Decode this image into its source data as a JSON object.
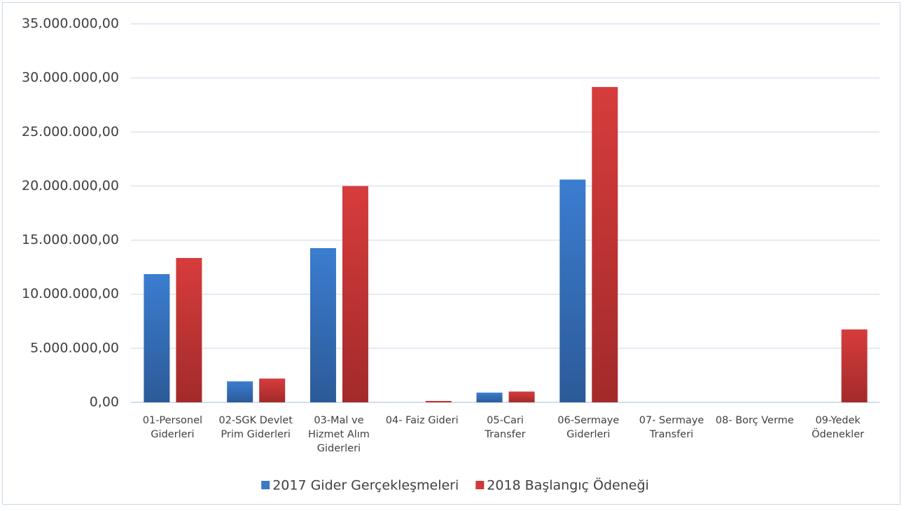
{
  "chart_data": {
    "type": "bar",
    "categories": [
      "01-Personel Giderleri",
      "02-SGK Devlet Prim Giderleri",
      "03-Mal ve Hizmet Alım Giderleri",
      "04- Faiz Gideri",
      "05-Cari Transfer",
      "06-Sermaye Giderleri",
      "07- Sermaye Transferi",
      "08- Borç Verme",
      "09-Yedek Ödenekler"
    ],
    "series": [
      {
        "name": "2017 Gider Gerçekleşmeleri",
        "color": "#3a78c8",
        "values": [
          11860000,
          1940000,
          14260000,
          0,
          900000,
          20600000,
          0,
          0,
          0
        ]
      },
      {
        "name": "2018 Başlangıç Ödeneği",
        "color": "#d03a3a",
        "values": [
          13350000,
          2200000,
          20000000,
          130000,
          1000000,
          29160000,
          0,
          0,
          6740000
        ]
      }
    ],
    "ylim": [
      0,
      35000000
    ],
    "yticks": [
      {
        "value": 0,
        "label": "0,00"
      },
      {
        "value": 5000000,
        "label": "5.000.000,00"
      },
      {
        "value": 10000000,
        "label": "10.000.000,00"
      },
      {
        "value": 15000000,
        "label": "15.000.000,00"
      },
      {
        "value": 20000000,
        "label": "20.000.000,00"
      },
      {
        "value": 25000000,
        "label": "25.000.000,00"
      },
      {
        "value": 30000000,
        "label": "30.000.000,00"
      },
      {
        "value": 35000000,
        "label": "35.000.000,00"
      }
    ],
    "grid": true,
    "legend": "bottom"
  }
}
